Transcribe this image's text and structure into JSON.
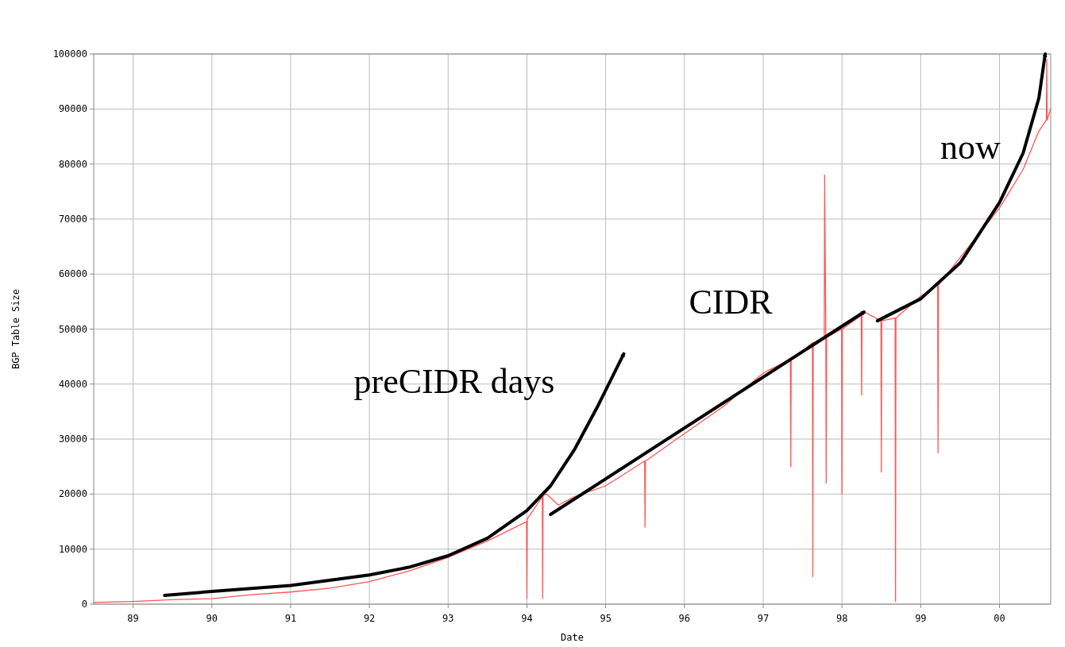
{
  "chart_data": {
    "type": "line",
    "xlabel": "Date",
    "ylabel": "BGP Table Size",
    "xlim": [
      1988.5,
      2000.65
    ],
    "ylim": [
      0,
      100000
    ],
    "xticks": [
      {
        "value": 1989,
        "label": "89"
      },
      {
        "value": 1990,
        "label": "90"
      },
      {
        "value": 1991,
        "label": "91"
      },
      {
        "value": 1992,
        "label": "92"
      },
      {
        "value": 1993,
        "label": "93"
      },
      {
        "value": 1994,
        "label": "94"
      },
      {
        "value": 1995,
        "label": "95"
      },
      {
        "value": 1996,
        "label": "96"
      },
      {
        "value": 1997,
        "label": "97"
      },
      {
        "value": 1998,
        "label": "98"
      },
      {
        "value": 1999,
        "label": "99"
      },
      {
        "value": 2000,
        "label": "00"
      }
    ],
    "yticks": [
      0,
      10000,
      20000,
      30000,
      40000,
      50000,
      60000,
      70000,
      80000,
      90000,
      100000
    ],
    "grid": true,
    "series": [
      {
        "color": "#ff5555",
        "x": [
          1988.5,
          1989,
          1989.5,
          1990,
          1990.5,
          1991,
          1991.5,
          1992,
          1992.5,
          1993,
          1993.5,
          1993.995,
          1994,
          1994.005,
          1994.195,
          1994.2,
          1994.205,
          1994.25,
          1994.4,
          1994.6,
          1995,
          1995.495,
          1995.5,
          1995.505,
          1996,
          1996.5,
          1997,
          1997.345,
          1997.35,
          1997.355,
          1997.5,
          1997.625,
          1997.63,
          1997.635,
          1997.775,
          1997.78,
          1997.795,
          1997.8,
          1997.805,
          1997.995,
          1998,
          1998.005,
          1998.245,
          1998.25,
          1998.255,
          1998.3,
          1998.495,
          1998.5,
          1998.505,
          1998.675,
          1998.68,
          1998.685,
          1999,
          1999.215,
          1999.22,
          1999.225,
          1999.5,
          2000,
          2000.3,
          2000.5,
          2000.595,
          2000.6,
          2000.605,
          2000.65
        ],
        "values": [
          300,
          500,
          800,
          1000,
          1700,
          2200,
          2900,
          4100,
          6000,
          8500,
          11500,
          15000,
          1000,
          15500,
          19500,
          1000,
          19800,
          20000,
          18000,
          19500,
          21500,
          26000,
          14000,
          26000,
          31000,
          36000,
          42000,
          44500,
          25000,
          44500,
          46000,
          47500,
          5000,
          47500,
          48500,
          78000,
          48500,
          22000,
          48500,
          50000,
          20000,
          50000,
          52500,
          38000,
          52500,
          53000,
          51500,
          24000,
          51500,
          52000,
          500,
          52000,
          56000,
          58000,
          27500,
          58000,
          63000,
          72000,
          79000,
          86000,
          88000,
          99000,
          88000,
          90000
        ]
      },
      {
        "color": "#000000",
        "x": [
          1989.4,
          1990,
          1991,
          1992,
          1992.5,
          1993,
          1993.5,
          1994,
          1994.3,
          1994.6,
          1994.9,
          1995.23
        ],
        "values": [
          1600,
          2300,
          3400,
          5300,
          6700,
          8800,
          12000,
          17000,
          21500,
          28000,
          36000,
          45500
        ]
      },
      {
        "color": "#000000",
        "x": [
          1994.3,
          1998.28
        ],
        "values": [
          16300,
          53100
        ]
      },
      {
        "color": "#000000",
        "x": [
          1998.45,
          1999,
          1999.5,
          2000,
          2000.3,
          2000.5,
          2000.58
        ],
        "values": [
          51500,
          55500,
          62000,
          73000,
          82000,
          92000,
          100000
        ]
      }
    ],
    "annotations": [
      "preCIDR days",
      "CIDR",
      "now"
    ]
  }
}
